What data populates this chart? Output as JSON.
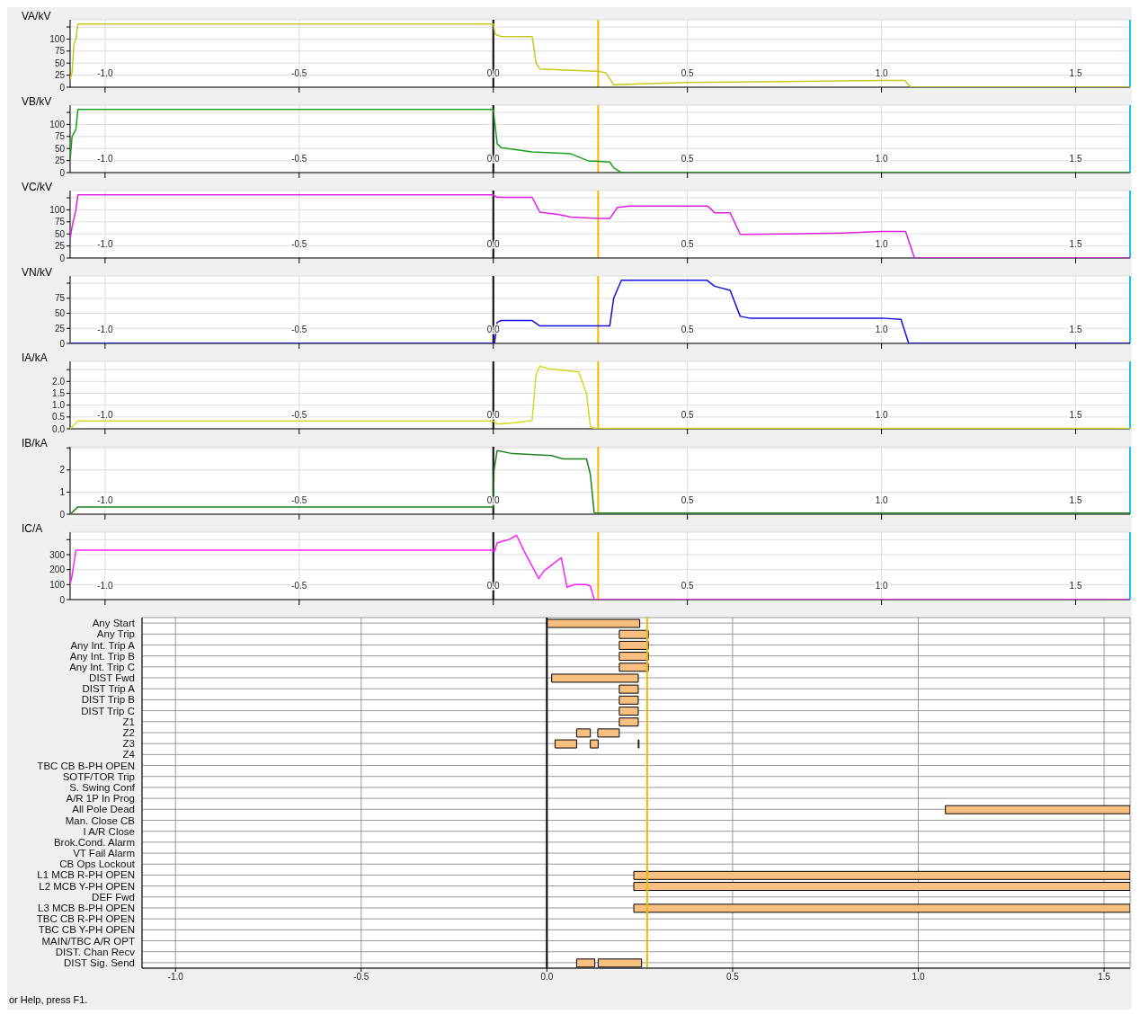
{
  "chart_data": [
    {
      "type": "line",
      "ylabel": "VA/kV",
      "color": "#c8c81e",
      "x": [
        -1.09,
        -1.085,
        -1.08,
        -1.075,
        -1.07,
        0,
        0.005,
        0.02,
        0.1,
        0.105,
        0.11,
        0.12,
        0.2,
        0.27,
        0.29,
        0.31,
        0.5,
        0.8,
        1.0,
        1.06,
        1.076,
        1.64
      ],
      "values": [
        15,
        30,
        90,
        100,
        131,
        131,
        110,
        105,
        105,
        80,
        50,
        38,
        35,
        33,
        30,
        5,
        10,
        12,
        14,
        14,
        0,
        0
      ],
      "xlim": [
        -1.09,
        1.64
      ],
      "xticks": [
        {
          "value": -1,
          "label": "-1.0"
        },
        -0.5,
        {
          "value": 0,
          "label": "0.0"
        },
        0.5,
        {
          "value": 1,
          "label": "1.0"
        },
        1.5
      ],
      "ylim": [
        0,
        140
      ],
      "yticks": [
        0,
        25,
        50,
        75,
        100,
        {
          "value": 125,
          "label": null
        }
      ],
      "grid": true,
      "ref_lines": [
        {
          "axis": "x",
          "value": 0,
          "color": "#000000"
        },
        {
          "axis": "x",
          "value": 0.27,
          "color": "#f5b800"
        },
        {
          "axis": "x",
          "value": 1.64,
          "color": "#20c0f0"
        }
      ]
    },
    {
      "type": "line",
      "ylabel": "VB/kV",
      "color": "#1aa01a",
      "x": [
        -1.09,
        -1.085,
        -1.075,
        -1.07,
        0,
        0.003,
        0.01,
        0.02,
        0.1,
        0.2,
        0.246,
        0.26,
        0.3,
        0.31,
        0.33,
        1.64
      ],
      "values": [
        25,
        75,
        90,
        131,
        131,
        110,
        60,
        52,
        43,
        39,
        24,
        24,
        22,
        10,
        0,
        0
      ],
      "xlim": [
        -1.09,
        1.64
      ],
      "xticks": [
        {
          "value": -1,
          "label": "-1.0"
        },
        -0.5,
        {
          "value": 0,
          "label": "0.0"
        },
        0.5,
        {
          "value": 1,
          "label": "1.0"
        },
        1.5
      ],
      "ylim": [
        0,
        140
      ],
      "yticks": [
        0,
        25,
        50,
        75,
        100,
        {
          "value": 125,
          "label": null
        }
      ],
      "grid": true,
      "ref_lines": [
        {
          "axis": "x",
          "value": 0,
          "color": "#000000"
        },
        {
          "axis": "x",
          "value": 0.27,
          "color": "#f5b800"
        },
        {
          "axis": "x",
          "value": 1.64,
          "color": "#20c0f0"
        }
      ]
    },
    {
      "type": "line",
      "ylabel": "VC/kV",
      "color": "#e020e0",
      "x": [
        -1.09,
        -1.085,
        -1.075,
        -1.07,
        0,
        0.01,
        0.1,
        0.12,
        0.17,
        0.2,
        0.27,
        0.3,
        0.32,
        0.35,
        0.552,
        0.57,
        0.61,
        0.636,
        0.75,
        0.9,
        1.0,
        1.062,
        1.085,
        1.64
      ],
      "values": [
        40,
        65,
        100,
        131,
        131,
        126,
        126,
        95,
        90,
        85,
        82,
        82,
        105,
        108,
        108,
        94,
        94,
        49,
        50,
        52,
        55,
        55,
        0,
        0
      ],
      "xlim": [
        -1.09,
        1.64
      ],
      "xticks": [
        {
          "value": -1,
          "label": "-1.0"
        },
        -0.5,
        {
          "value": 0,
          "label": "0.0"
        },
        0.5,
        {
          "value": 1,
          "label": "1.0"
        },
        1.5
      ],
      "ylim": [
        0,
        140
      ],
      "yticks": [
        0,
        25,
        50,
        75,
        100,
        {
          "value": 125,
          "label": null
        }
      ],
      "grid": true,
      "ref_lines": [
        {
          "axis": "x",
          "value": 0,
          "color": "#000000"
        },
        {
          "axis": "x",
          "value": 0.27,
          "color": "#f5b800"
        },
        {
          "axis": "x",
          "value": 1.64,
          "color": "#20c0f0"
        }
      ]
    },
    {
      "type": "line",
      "ylabel": "VN/kV",
      "color": "#1010e0",
      "x": [
        -1.09,
        0,
        0.003,
        0.01,
        0.02,
        0.1,
        0.12,
        0.2,
        0.3,
        0.31,
        0.33,
        0.55,
        0.57,
        0.61,
        0.636,
        0.66,
        1.0,
        1.05,
        1.07,
        1.64
      ],
      "values": [
        0,
        0,
        0,
        35,
        38,
        38,
        29,
        29,
        29,
        75,
        105,
        105,
        95,
        88,
        45,
        42,
        42,
        40,
        0,
        0
      ],
      "xlim": [
        -1.09,
        1.64
      ],
      "xticks": [
        {
          "value": -1,
          "label": "-1.0"
        },
        -0.5,
        {
          "value": 0,
          "label": "0.0"
        },
        0.5,
        {
          "value": 1,
          "label": "1.0"
        },
        1.5
      ],
      "ylim": [
        0,
        112
      ],
      "yticks": [
        0,
        25,
        50,
        75,
        {
          "value": 100,
          "label": null
        }
      ],
      "grid": true,
      "ref_lines": [
        {
          "axis": "x",
          "value": 0,
          "color": "#000000"
        },
        {
          "axis": "x",
          "value": 0.27,
          "color": "#f5b800"
        },
        {
          "axis": "x",
          "value": 1.64,
          "color": "#20c0f0"
        }
      ]
    },
    {
      "type": "line",
      "ylabel": "IA/kA",
      "color": "#d8d820",
      "x": [
        -1.09,
        -1.07,
        0,
        0.01,
        0.05,
        0.1,
        0.11,
        0.12,
        0.14,
        0.22,
        0.24,
        0.25,
        0.26,
        1.64
      ],
      "values": [
        0,
        0.33,
        0.33,
        0.2,
        0.25,
        0.35,
        2.3,
        2.65,
        2.55,
        2.4,
        1.5,
        0.1,
        0.02,
        0.02
      ],
      "xlim": [
        -1.09,
        1.64
      ],
      "xticks": [
        {
          "value": -1,
          "label": "-1.0"
        },
        -0.5,
        {
          "value": 0,
          "label": "0.0"
        },
        0.5,
        {
          "value": 1,
          "label": "1.0"
        },
        1.5
      ],
      "ylim": [
        0,
        2.85
      ],
      "yticks": [
        {
          "value": 0,
          "label": "0.0"
        },
        0.5,
        {
          "value": 1,
          "label": "1.0"
        },
        1.5,
        {
          "value": 2,
          "label": "2.0"
        },
        {
          "value": 2.5,
          "label": null
        }
      ],
      "grid": true,
      "ref_lines": [
        {
          "axis": "x",
          "value": 0,
          "color": "#000000"
        },
        {
          "axis": "x",
          "value": 0.27,
          "color": "#f5b800"
        },
        {
          "axis": "x",
          "value": 1.64,
          "color": "#20c0f0"
        }
      ]
    },
    {
      "type": "line",
      "ylabel": "IB/kA",
      "color": "#208020",
      "x": [
        -1.09,
        -1.07,
        0,
        0.002,
        0.01,
        0.05,
        0.15,
        0.18,
        0.24,
        0.25,
        0.26,
        1.64
      ],
      "values": [
        0,
        0.33,
        0.33,
        2.0,
        2.88,
        2.74,
        2.65,
        2.5,
        2.5,
        1.8,
        0.05,
        0.05
      ],
      "xlim": [
        -1.09,
        1.64
      ],
      "xticks": [
        {
          "value": -1,
          "label": "-1.0"
        },
        -0.5,
        {
          "value": 0,
          "label": "0.0"
        },
        0.5,
        {
          "value": 1,
          "label": "1.0"
        },
        1.5
      ],
      "ylim": [
        0,
        3.05
      ],
      "yticks": [
        0,
        1,
        2,
        {
          "value": 3,
          "label": null
        }
      ],
      "grid": true,
      "ref_lines": [
        {
          "axis": "x",
          "value": 0,
          "color": "#000000"
        },
        {
          "axis": "x",
          "value": 0.27,
          "color": "#f5b800"
        },
        {
          "axis": "x",
          "value": 1.64,
          "color": "#20c0f0"
        }
      ]
    },
    {
      "type": "line",
      "ylabel": "IC/A",
      "color": "#ff20ff",
      "x": [
        -1.09,
        -1.085,
        -1.075,
        0,
        0.003,
        0.01,
        0.04,
        0.06,
        0.08,
        0.117,
        0.13,
        0.15,
        0.175,
        0.19,
        0.21,
        0.24,
        0.25,
        0.26,
        1.64
      ],
      "values": [
        100,
        160,
        330,
        330,
        320,
        380,
        400,
        429,
        320,
        140,
        190,
        230,
        280,
        83,
        100,
        100,
        90,
        0,
        0
      ],
      "xlim": [
        -1.09,
        1.64
      ],
      "xticks": [
        {
          "value": -1,
          "label": "-1.0"
        },
        -0.5,
        {
          "value": 0,
          "label": "0.0"
        },
        0.5,
        {
          "value": 1,
          "label": "1.0"
        },
        1.5
      ],
      "ylim": [
        0,
        450
      ],
      "yticks": [
        0,
        100,
        200,
        300,
        {
          "value": 400,
          "label": null
        }
      ],
      "grid": true,
      "ref_lines": [
        {
          "axis": "x",
          "value": 0,
          "color": "#000000"
        },
        {
          "axis": "x",
          "value": 0.27,
          "color": "#f5b800"
        },
        {
          "axis": "x",
          "value": 1.64,
          "color": "#20c0f0"
        }
      ]
    },
    {
      "type": "bar",
      "orientation": "horizontal",
      "categories": [
        "Any Start",
        "Any Trip",
        "Any Int. Trip A",
        "Any Int. Trip B",
        "Any Int. Trip C",
        "DIST Fwd",
        "DIST Trip A",
        "DIST Trip B",
        "DIST Trip C",
        "Z1",
        "Z2",
        "Z3",
        "Z4",
        "TBC CB B-PH OPEN",
        "SOTF/TOR Trip",
        "S. Swing Conf",
        "A/R 1P In Prog",
        "All Pole Dead",
        "Man. Close CB",
        "I A/R Close",
        "Brok.Cond. Alarm",
        "VT Fail Alarm",
        "CB Ops Lockout",
        "L1 MCB R-PH OPEN",
        "L2 MCB Y-PH OPEN",
        "DEF Fwd",
        "L3 MCB B-PH OPEN",
        "TBC CB R-PH OPEN",
        "TBC CB Y-PH OPEN",
        "MAIN/TBC A/R OPT",
        "DIST. Chan Recv",
        "DIST Sig. Send"
      ],
      "series": [
        {
          "color": "#f8c080",
          "base": [
            0,
            0.195,
            0.195,
            0.195,
            0.195,
            0.013,
            0.195,
            0.195,
            0.195,
            0.195,
            0.08,
            0.022,
            null,
            null,
            null,
            null,
            null,
            1.073,
            null,
            null,
            null,
            null,
            null,
            0.234,
            0.234,
            null,
            0.234,
            null,
            null,
            null,
            null,
            0.08
          ],
          "values": [
            0.25,
            0.078,
            0.078,
            0.078,
            0.078,
            0.233,
            0.051,
            0.051,
            0.051,
            0.051,
            0.037,
            0.058,
            null,
            null,
            null,
            null,
            null,
            0.497,
            null,
            null,
            null,
            null,
            null,
            1.336,
            1.336,
            null,
            1.336,
            null,
            null,
            null,
            null,
            0.049
          ]
        },
        {
          "color": "#f8c080",
          "base": [
            null,
            null,
            null,
            null,
            null,
            null,
            null,
            null,
            null,
            null,
            0.137,
            0.117,
            null,
            null,
            null,
            null,
            null,
            null,
            null,
            null,
            null,
            null,
            null,
            null,
            null,
            null,
            null,
            null,
            null,
            null,
            null,
            0.138
          ],
          "values": [
            null,
            null,
            null,
            null,
            null,
            null,
            null,
            null,
            null,
            null,
            0.058,
            0.021,
            null,
            null,
            null,
            null,
            null,
            null,
            null,
            null,
            null,
            null,
            null,
            null,
            null,
            null,
            null,
            null,
            null,
            null,
            null,
            0.117
          ]
        },
        {
          "color": "#f8c080",
          "base": [
            null,
            null,
            null,
            null,
            null,
            null,
            null,
            null,
            null,
            null,
            null,
            0.246,
            null,
            null,
            null,
            null,
            null,
            null,
            null,
            null,
            null,
            null,
            null,
            null,
            null,
            null,
            null,
            null,
            null,
            null,
            null,
            null
          ],
          "values": [
            null,
            null,
            null,
            null,
            null,
            null,
            null,
            null,
            null,
            null,
            null,
            0.002,
            null,
            null,
            null,
            null,
            null,
            null,
            null,
            null,
            null,
            null,
            null,
            null,
            null,
            null,
            null,
            null,
            null,
            null,
            null,
            null
          ]
        }
      ],
      "xlim": [
        -1.09,
        1.57
      ],
      "xticks": [
        {
          "value": -1,
          "label": "-1.0"
        },
        -0.5,
        {
          "value": 0,
          "label": "0.0"
        },
        0.5,
        {
          "value": 1,
          "label": "1.0"
        },
        1.5
      ],
      "grid": true,
      "ref_lines": [
        {
          "axis": "x",
          "value": 0,
          "color": "#000000"
        },
        {
          "axis": "x",
          "value": 0.27,
          "color": "#f5b800"
        }
      ],
      "annotations": [
        "or Help, press F1."
      ]
    }
  ]
}
